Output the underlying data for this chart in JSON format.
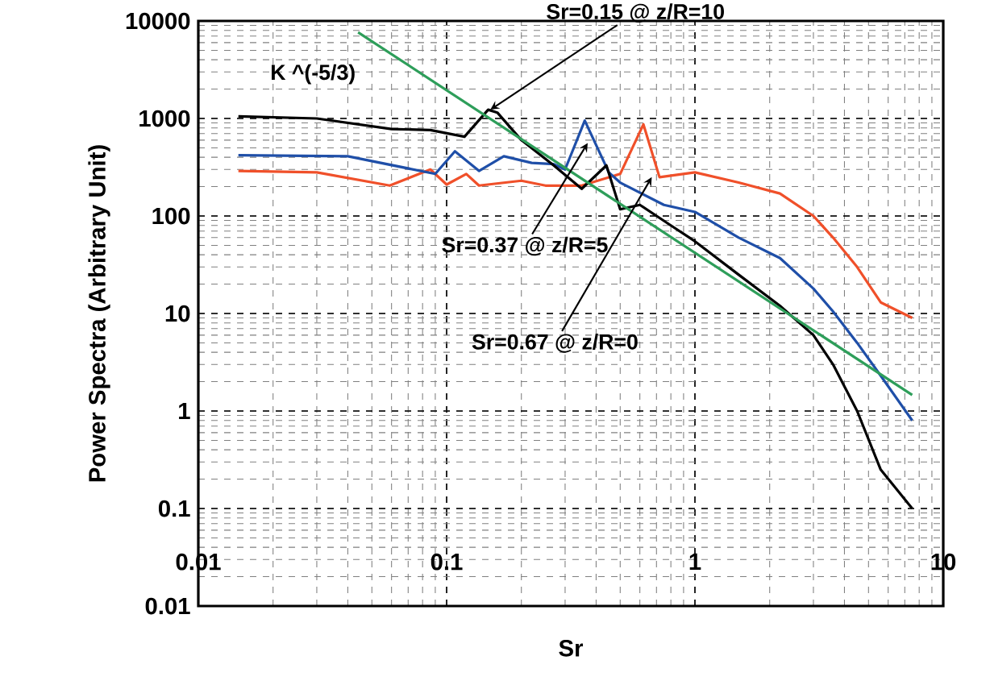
{
  "chart_data": {
    "type": "line",
    "xlabel": "Sr",
    "ylabel": "Power Spectra (Arbitrary Unit)",
    "log": "xy",
    "grid": true,
    "marker": "none",
    "line_style": "solid",
    "xlim": [
      0.01,
      10
    ],
    "ylim": [
      0.01,
      10000
    ],
    "xticks": [
      0.01,
      0.1,
      1,
      10
    ],
    "yticks": [
      0.01,
      0.1,
      1,
      10,
      100,
      1000,
      10000
    ],
    "series": [
      {
        "color": "#f0502a",
        "x": [
          0.0145,
          0.03,
          0.059,
          0.086,
          0.1,
          0.12,
          0.135,
          0.2,
          0.25,
          0.35,
          0.5,
          0.62,
          0.72,
          1,
          1.5,
          2.2,
          3,
          3.6,
          4.5,
          5.6,
          7.5
        ],
        "values": [
          290,
          280,
          205,
          300,
          210,
          270,
          205,
          230,
          205,
          205,
          270,
          870,
          250,
          280,
          220,
          170,
          100,
          60,
          30,
          13,
          9
        ]
      },
      {
        "color": "#1f4fa8",
        "x": [
          0.0145,
          0.04,
          0.09,
          0.108,
          0.135,
          0.17,
          0.22,
          0.27,
          0.3,
          0.36,
          0.45,
          0.5,
          0.75,
          1,
          1.5,
          2.2,
          3,
          3.6,
          4.5,
          5.6,
          7.5
        ],
        "values": [
          420,
          410,
          270,
          460,
          290,
          410,
          350,
          340,
          300,
          950,
          280,
          220,
          130,
          110,
          60,
          37,
          18,
          10.5,
          5,
          2.3,
          0.8
        ]
      },
      {
        "color": "#000000",
        "x": [
          0.0145,
          0.03,
          0.06,
          0.086,
          0.118,
          0.147,
          0.16,
          0.2,
          0.27,
          0.35,
          0.44,
          0.5,
          0.6,
          0.8,
          1,
          1.5,
          2.2,
          3,
          3.6,
          4.5,
          5.6,
          7.5
        ],
        "values": [
          1050,
          1000,
          780,
          760,
          650,
          1230,
          1150,
          600,
          330,
          190,
          330,
          117,
          130,
          80,
          55,
          25,
          12,
          6,
          3,
          1,
          0.25,
          0.1
        ]
      },
      {
        "name": "K ^(-5/3)",
        "color": "#2e9e5a",
        "x": [
          0.044,
          7.5
        ],
        "values": [
          7650,
          1.46
        ]
      }
    ],
    "annotations": [
      {
        "text": "Sr=0.15 @ z/R=10",
        "x": 0.15,
        "y": 1230
      },
      {
        "text": "Sr=0.37 @ z/R=5",
        "x": 0.37,
        "y": 560
      },
      {
        "text": "Sr=0.67 @ z/R=0",
        "x": 0.67,
        "y": 250
      }
    ]
  }
}
